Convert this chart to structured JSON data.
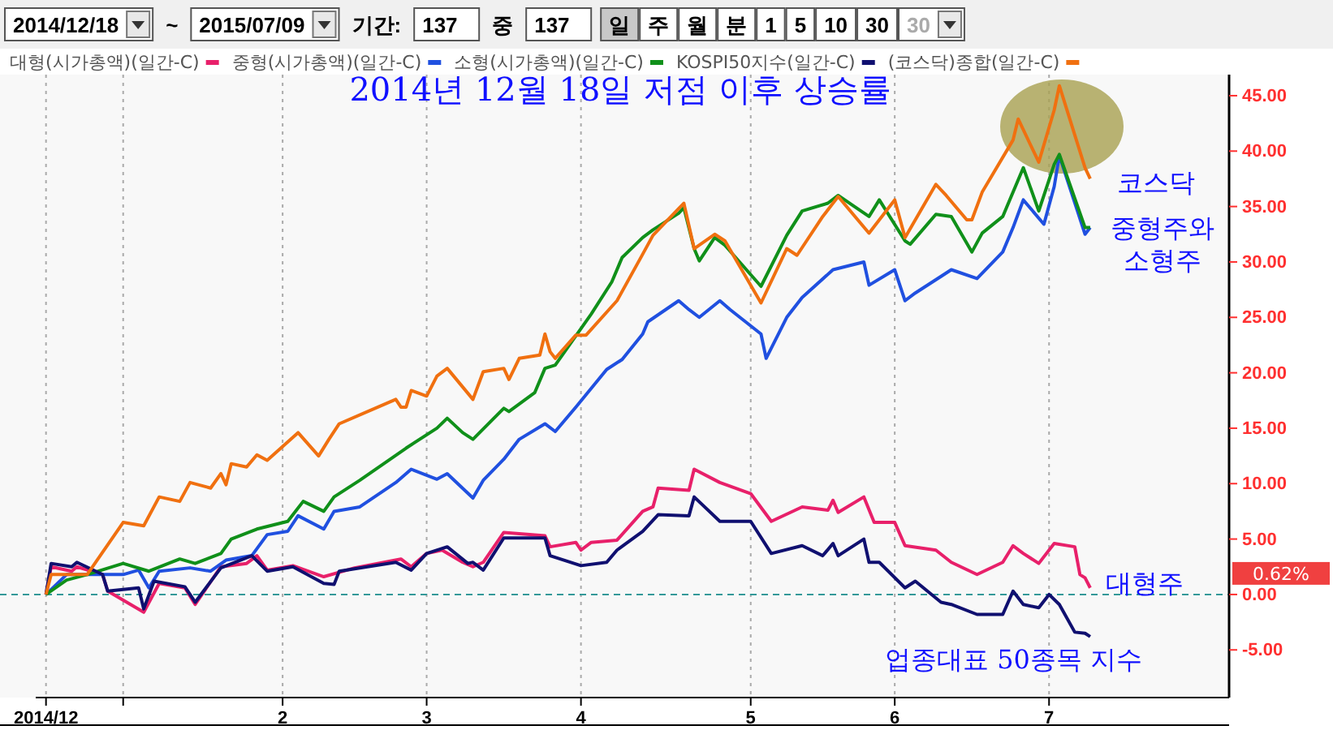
{
  "chart_data": {
    "type": "line",
    "title": "2014년 12월 18일 저점 이후 상승률",
    "xlim": [
      "2014-12-16",
      "2015-08-05"
    ],
    "xticks": [
      {
        "value": "2014-12-18",
        "label": "2014/12"
      },
      {
        "value": "2015-01-02",
        "label": null
      },
      {
        "value": "2015-02-02",
        "label": "2"
      },
      {
        "value": "2015-03-02",
        "label": "3"
      },
      {
        "value": "2015-04-01",
        "label": "4"
      },
      {
        "value": "2015-05-04",
        "label": "5"
      },
      {
        "value": "2015-06-01",
        "label": "6"
      },
      {
        "value": "2015-07-01",
        "label": "7"
      }
    ],
    "ylim": [
      -9.3,
      46.9
    ],
    "yticks": [
      {
        "value": -5,
        "label": "-5.00"
      },
      {
        "value": 0,
        "label": "0.00"
      },
      {
        "value": 5,
        "label": "5.00"
      },
      {
        "value": 10,
        "label": "10.00"
      },
      {
        "value": 15,
        "label": "15.00"
      },
      {
        "value": 20,
        "label": "20.00"
      },
      {
        "value": 25,
        "label": "25.00"
      },
      {
        "value": 30,
        "label": "30.00"
      },
      {
        "value": 35,
        "label": "35.00"
      },
      {
        "value": 40,
        "label": "40.00"
      },
      {
        "value": 45,
        "label": "45.00"
      }
    ],
    "grid": "x",
    "legend": "top",
    "line_style": "solid",
    "marker": "none",
    "ref_lines": [
      {
        "axis": "y",
        "value": 0,
        "color": "#339999",
        "line_style": "dashed"
      }
    ],
    "series": [
      {
        "name": "대형(시가총액)(일간-C)",
        "color": "#e8206a",
        "x": [
          "2014-12-18",
          "2014-12-19",
          "2014-12-23",
          "2014-12-24",
          "2014-12-29",
          "2014-12-30",
          "2015-01-06",
          "2015-01-09",
          "2015-01-14",
          "2015-01-16",
          "2015-01-21",
          "2015-01-26",
          "2015-01-28",
          "2015-01-30",
          "2015-02-04",
          "2015-02-10",
          "2015-02-16",
          "2015-02-25",
          "2015-02-27",
          "2015-03-02",
          "2015-03-05",
          "2015-03-09",
          "2015-03-11",
          "2015-03-13",
          "2015-03-17",
          "2015-03-25",
          "2015-03-26",
          "2015-03-31",
          "2015-04-01",
          "2015-04-03",
          "2015-04-08",
          "2015-04-13",
          "2015-04-15",
          "2015-04-16",
          "2015-04-22",
          "2015-04-23",
          "2015-04-28",
          "2015-05-04",
          "2015-05-08",
          "2015-05-14",
          "2015-05-19",
          "2015-05-20",
          "2015-05-21",
          "2015-05-26",
          "2015-05-28",
          "2015-06-01",
          "2015-06-03",
          "2015-06-09",
          "2015-06-12",
          "2015-06-17",
          "2015-06-22",
          "2015-06-24",
          "2015-06-26",
          "2015-06-29",
          "2015-07-02",
          "2015-07-06",
          "2015-07-07",
          "2015-07-08",
          "2015-07-09"
        ],
        "values": [
          0,
          2.5,
          2.1,
          2.5,
          1.8,
          0.3,
          -1.6,
          1,
          0.6,
          -0.9,
          2.5,
          2.8,
          3.5,
          2.2,
          2.6,
          1.6,
          2.4,
          3.2,
          2.5,
          3.7,
          4,
          2.9,
          2.5,
          2.9,
          5.6,
          5.3,
          4.3,
          4.7,
          4,
          4.7,
          4.9,
          7.5,
          7.9,
          9.6,
          9.4,
          11.3,
          10.1,
          9.1,
          6.6,
          7.9,
          7.6,
          8.5,
          7.4,
          8.8,
          6.5,
          6.5,
          4.4,
          4,
          2.9,
          1.8,
          2.9,
          4.4,
          3.7,
          2.8,
          4.6,
          4.3,
          1.8,
          1.5,
          0.6
        ]
      },
      {
        "name": "중형(시가총액)(일간-C)",
        "color": "#2050e0",
        "x": [
          "2014-12-18",
          "2014-12-22",
          "2014-12-26",
          "2015-01-02",
          "2015-01-05",
          "2015-01-07",
          "2015-01-09",
          "2015-01-15",
          "2015-01-19",
          "2015-01-22",
          "2015-01-27",
          "2015-01-30",
          "2015-02-03",
          "2015-02-05",
          "2015-02-10",
          "2015-02-12",
          "2015-02-17",
          "2015-02-24",
          "2015-02-27",
          "2015-03-04",
          "2015-03-06",
          "2015-03-11",
          "2015-03-13",
          "2015-03-17",
          "2015-03-20",
          "2015-03-25",
          "2015-03-27",
          "2015-03-31",
          "2015-04-06",
          "2015-04-09",
          "2015-04-13",
          "2015-04-14",
          "2015-04-20",
          "2015-04-22",
          "2015-04-24",
          "2015-04-28",
          "2015-04-30",
          "2015-05-06",
          "2015-05-07",
          "2015-05-11",
          "2015-05-14",
          "2015-05-20",
          "2015-05-26",
          "2015-05-27",
          "2015-06-01",
          "2015-06-03",
          "2015-06-05",
          "2015-06-10",
          "2015-06-12",
          "2015-06-17",
          "2015-06-22",
          "2015-06-24",
          "2015-06-26",
          "2015-06-30",
          "2015-07-02",
          "2015-07-03",
          "2015-07-08",
          "2015-07-09"
        ],
        "values": [
          0,
          1.8,
          1.8,
          1.8,
          2.2,
          0.6,
          2.1,
          2.4,
          2.1,
          3.1,
          3.5,
          5.4,
          5.7,
          7.1,
          5.9,
          7.5,
          7.9,
          10.1,
          11.3,
          10.4,
          10.9,
          8.7,
          10.3,
          12.2,
          14,
          15.4,
          14.7,
          16.9,
          20.3,
          21.2,
          23.5,
          24.6,
          26.5,
          25.7,
          25,
          26.5,
          25.7,
          23.5,
          21.3,
          25,
          26.8,
          29.3,
          30,
          27.9,
          29.3,
          26.5,
          27.2,
          28.7,
          29.3,
          28.5,
          30.9,
          33.1,
          35.6,
          33.4,
          36.8,
          39.6,
          32.5,
          33.1
        ]
      },
      {
        "name": "소형(시가총액)(일간-C)",
        "color": "#10901a",
        "x": [
          "2014-12-18",
          "2014-12-22",
          "2014-12-26",
          "2015-01-02",
          "2015-01-07",
          "2015-01-13",
          "2015-01-16",
          "2015-01-21",
          "2015-01-23",
          "2015-01-28",
          "2015-02-03",
          "2015-02-06",
          "2015-02-10",
          "2015-02-12",
          "2015-02-17",
          "2015-02-26",
          "2015-03-04",
          "2015-03-06",
          "2015-03-09",
          "2015-03-11",
          "2015-03-17",
          "2015-03-18",
          "2015-03-23",
          "2015-03-25",
          "2015-03-27",
          "2015-04-03",
          "2015-04-07",
          "2015-04-09",
          "2015-04-13",
          "2015-04-15",
          "2015-04-20",
          "2015-04-21",
          "2015-04-23",
          "2015-04-24",
          "2015-04-27",
          "2015-04-29",
          "2015-05-06",
          "2015-05-11",
          "2015-05-14",
          "2015-05-19",
          "2015-05-21",
          "2015-05-27",
          "2015-05-29",
          "2015-06-03",
          "2015-06-04",
          "2015-06-09",
          "2015-06-12",
          "2015-06-16",
          "2015-06-18",
          "2015-06-22",
          "2015-06-26",
          "2015-06-29",
          "2015-07-02",
          "2015-07-03",
          "2015-07-08",
          "2015-07-09"
        ],
        "values": [
          0,
          1.3,
          1.8,
          2.8,
          2.1,
          3.2,
          2.8,
          3.7,
          5,
          5.9,
          6.6,
          8.4,
          7.5,
          8.8,
          10.3,
          13.2,
          15,
          15.9,
          14.6,
          14,
          16.8,
          16.5,
          18.2,
          20.4,
          20.7,
          25.3,
          28.2,
          30.4,
          32.2,
          32.9,
          34.4,
          34.9,
          31.2,
          30.1,
          32.2,
          31.5,
          27.8,
          32.4,
          34.6,
          35.3,
          36,
          34.1,
          35.6,
          31.9,
          31.6,
          34.3,
          34.1,
          30.9,
          32.6,
          34.1,
          38.5,
          34.6,
          38.8,
          39.7,
          33.1,
          33.1
        ]
      },
      {
        "name": "KOSPI50지수(일간-C)",
        "color": "#101070",
        "x": [
          "2014-12-18",
          "2014-12-19",
          "2014-12-23",
          "2014-12-24",
          "2014-12-29",
          "2014-12-30",
          "2015-01-05",
          "2015-01-06",
          "2015-01-08",
          "2015-01-14",
          "2015-01-16",
          "2015-01-21",
          "2015-01-27",
          "2015-01-30",
          "2015-02-04",
          "2015-02-10",
          "2015-02-12",
          "2015-02-13",
          "2015-02-24",
          "2015-02-27",
          "2015-03-02",
          "2015-03-06",
          "2015-03-10",
          "2015-03-11",
          "2015-03-13",
          "2015-03-17",
          "2015-03-25",
          "2015-03-26",
          "2015-04-01",
          "2015-04-06",
          "2015-04-08",
          "2015-04-13",
          "2015-04-16",
          "2015-04-22",
          "2015-04-23",
          "2015-04-28",
          "2015-05-04",
          "2015-05-08",
          "2015-05-14",
          "2015-05-18",
          "2015-05-20",
          "2015-05-21",
          "2015-05-26",
          "2015-05-27",
          "2015-05-29",
          "2015-06-03",
          "2015-06-05",
          "2015-06-10",
          "2015-06-12",
          "2015-06-17",
          "2015-06-22",
          "2015-06-24",
          "2015-06-26",
          "2015-06-29",
          "2015-07-01",
          "2015-07-03",
          "2015-07-06",
          "2015-07-08",
          "2015-07-09"
        ],
        "values": [
          0,
          2.8,
          2.5,
          2.9,
          1.8,
          0.3,
          0.6,
          -1.3,
          1.2,
          0.7,
          -0.7,
          2.4,
          3.5,
          2.1,
          2.5,
          1,
          0.9,
          2.1,
          2.9,
          2.2,
          3.7,
          4.3,
          2.8,
          2.9,
          2.2,
          5.1,
          5.1,
          3.5,
          2.6,
          2.9,
          4,
          5.7,
          7.2,
          7.1,
          8.8,
          6.6,
          6.6,
          3.7,
          4.4,
          3.5,
          4.6,
          3.5,
          5,
          2.9,
          2.9,
          0.6,
          1.2,
          -0.7,
          -0.9,
          -1.8,
          -1.8,
          0.3,
          -0.9,
          -1.2,
          0,
          -0.9,
          -3.4,
          -3.5,
          -3.8
        ]
      },
      {
        "name": "(코스닥)종합(일간-C)",
        "color": "#f07010",
        "x": [
          "2014-12-18",
          "2014-12-19",
          "2014-12-26",
          "2015-01-02",
          "2015-01-06",
          "2015-01-09",
          "2015-01-13",
          "2015-01-15",
          "2015-01-19",
          "2015-01-21",
          "2015-01-22",
          "2015-01-23",
          "2015-01-26",
          "2015-01-28",
          "2015-01-30",
          "2015-02-05",
          "2015-02-09",
          "2015-02-11",
          "2015-02-13",
          "2015-02-24",
          "2015-02-25",
          "2015-02-26",
          "2015-02-27",
          "2015-03-02",
          "2015-03-04",
          "2015-03-06",
          "2015-03-11",
          "2015-03-13",
          "2015-03-17",
          "2015-03-18",
          "2015-03-20",
          "2015-03-24",
          "2015-03-25",
          "2015-03-26",
          "2015-03-27",
          "2015-03-31",
          "2015-04-02",
          "2015-04-08",
          "2015-04-13",
          "2015-04-15",
          "2015-04-21",
          "2015-04-23",
          "2015-04-27",
          "2015-04-29",
          "2015-05-06",
          "2015-05-11",
          "2015-05-13",
          "2015-05-18",
          "2015-05-21",
          "2015-05-27",
          "2015-06-01",
          "2015-06-03",
          "2015-06-09",
          "2015-06-11",
          "2015-06-15",
          "2015-06-16",
          "2015-06-18",
          "2015-06-24",
          "2015-06-25",
          "2015-06-29",
          "2015-07-02",
          "2015-07-03",
          "2015-07-08",
          "2015-07-09"
        ],
        "values": [
          0,
          1.8,
          1.8,
          6.5,
          6.2,
          8.8,
          8.4,
          10.1,
          9.6,
          10.9,
          9.9,
          11.8,
          11.5,
          12.6,
          12.1,
          14.6,
          12.5,
          14,
          15.4,
          17.6,
          16.9,
          16.9,
          18.4,
          17.9,
          19.7,
          20.4,
          17.6,
          20.1,
          20.4,
          19.4,
          21.3,
          21.6,
          23.5,
          21.9,
          21.3,
          23.4,
          23.4,
          26.5,
          30.7,
          32.4,
          35.3,
          31.2,
          32.5,
          31.9,
          26.3,
          31.2,
          30.6,
          34.1,
          35.9,
          32.6,
          35.6,
          32.2,
          37,
          36,
          33.8,
          33.8,
          36.3,
          41,
          42.9,
          39,
          43.7,
          45.9,
          38.5,
          37.5
        ]
      }
    ],
    "annotations": [
      "2014/12/18",
      "~",
      "2015/07/09",
      "기간:",
      "137",
      "중",
      "137",
      "일",
      "주",
      "월",
      "분",
      "1",
      "5",
      "10",
      "30",
      "30",
      "코스닥",
      "중형주와\n소형주",
      "대형주",
      "업종대표 50종목 지수",
      "0.62%"
    ]
  }
}
